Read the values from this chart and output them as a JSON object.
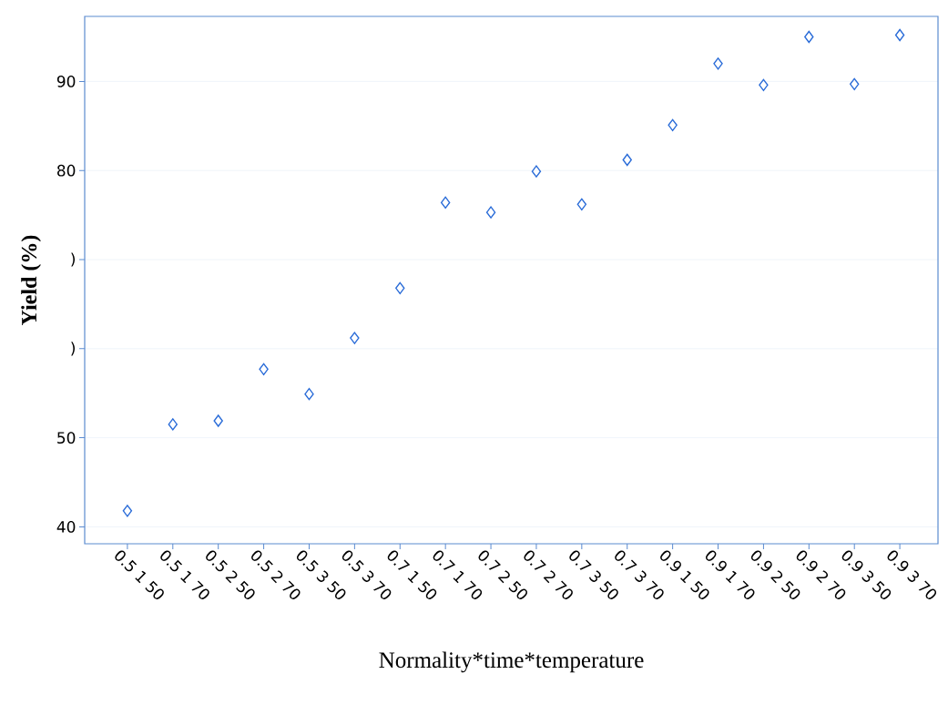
{
  "chart_data": {
    "type": "scatter",
    "xlabel": "Normality*time*temperature",
    "ylabel": "Yield (%)",
    "categories": [
      "0.5 1 50",
      "0.5 1 70",
      "0.5 2 50",
      "0.5 2 70",
      "0.5 3 50",
      "0.5 3 70",
      "0.7 1 50",
      "0.7 1 70",
      "0.7 2 50",
      "0.7 2 70",
      "0.7 3 50",
      "0.7 3 70",
      "0.9 1 50",
      "0.9 1 70",
      "0.9 2 50",
      "0.9 2 70",
      "0.9 3 50",
      "0.9 3 70"
    ],
    "values": [
      41.8,
      51.5,
      51.9,
      57.7,
      54.9,
      61.2,
      66.8,
      76.4,
      75.3,
      79.9,
      76.2,
      81.2,
      85.1,
      92.0,
      89.6,
      95.0,
      89.7,
      95.2
    ],
    "color": "#2a6cd8",
    "marker": "diamond",
    "grid": "y",
    "ylim": [
      38.1,
      97.3
    ],
    "yticks": [
      40,
      50,
      {
        "value": 60,
        "label": ")"
      },
      {
        "value": 70,
        "label": ")"
      },
      80,
      90
    ]
  }
}
